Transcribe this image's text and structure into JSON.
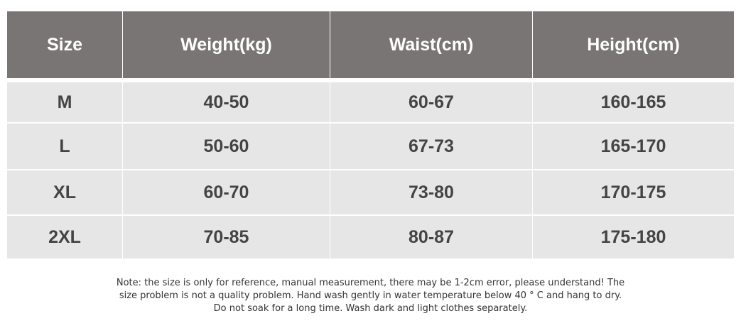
{
  "table": {
    "header": [
      "Size",
      "Weight(kg)",
      "Waist(cm)",
      "Height(cm)"
    ],
    "rows": [
      [
        "M",
        "40-50",
        "60-67",
        "160-165"
      ],
      [
        "L",
        "50-60",
        "67-73",
        "165-170"
      ],
      [
        "XL",
        "60-70",
        "73-80",
        "170-175"
      ],
      [
        "2XL",
        "70-85",
        "80-87",
        "175-180"
      ]
    ]
  },
  "note": [
    "Note: the size is only for reference, manual measurement, there may be 1-2cm error, please understand! The",
    "size problem is not a quality problem. Hand wash gently in water temperature below 40 ° C and hang to dry.",
    "Do not soak for a long time. Wash dark and light clothes separately."
  ]
}
